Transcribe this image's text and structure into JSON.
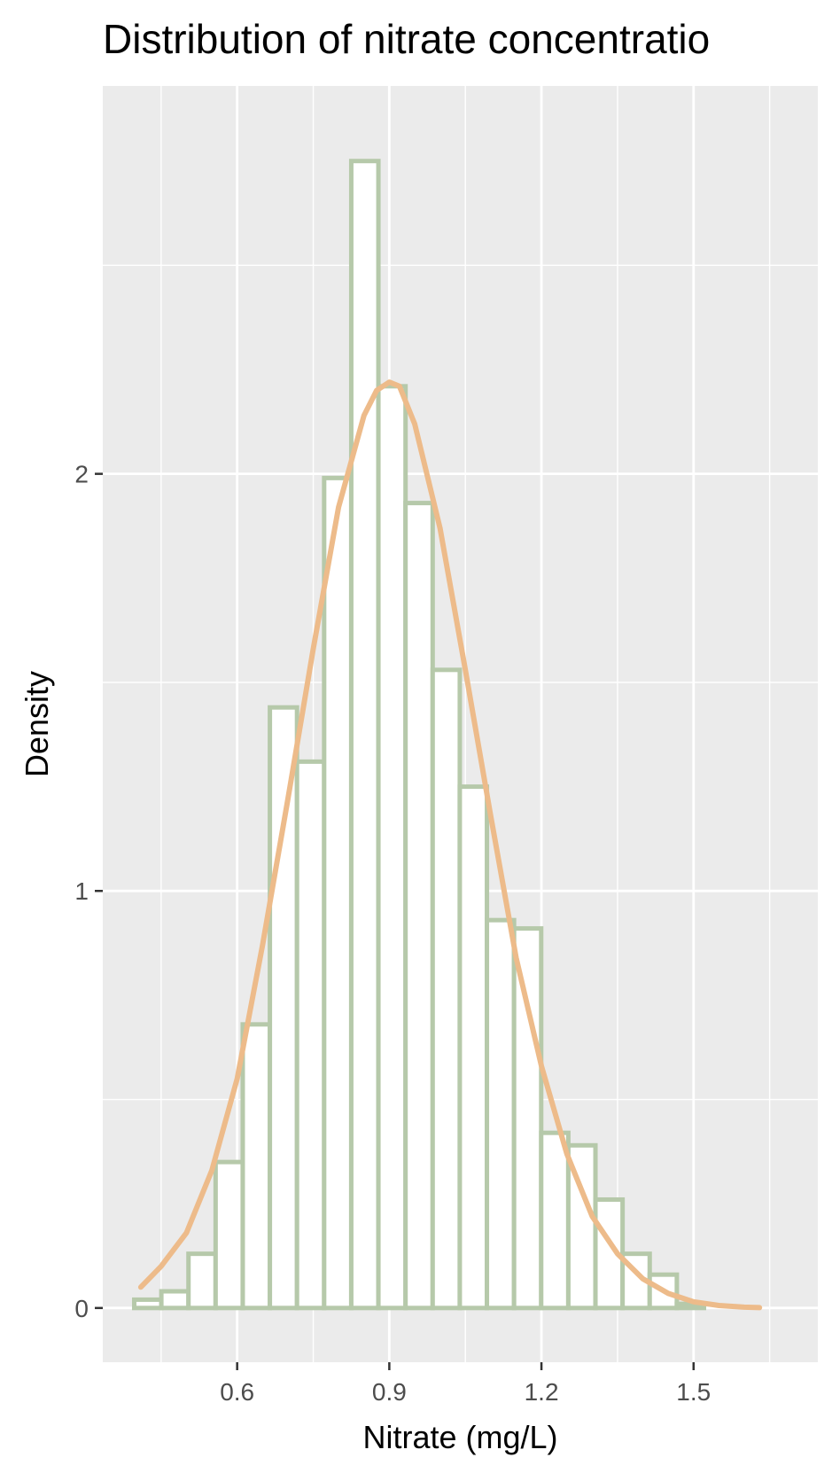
{
  "chart_data": {
    "type": "bar",
    "title": "Distribution of nitrate concentratio",
    "xlabel": "Nitrate (mg/L)",
    "ylabel": "Density",
    "x_ticks": [
      0.6,
      0.9,
      1.2,
      1.5
    ],
    "x_tick_labels": [
      "0.6",
      "0.9",
      "1.2",
      "1.5"
    ],
    "y_ticks": [
      0,
      1,
      2
    ],
    "y_tick_labels": [
      "0",
      "1",
      "2"
    ],
    "xlim": [
      0.335,
      1.745
    ],
    "ylim": [
      -0.13,
      2.93
    ],
    "grid": true,
    "histogram": {
      "bin_width": 0.0535,
      "bin_starts": [
        0.397,
        0.4505,
        0.504,
        0.5575,
        0.611,
        0.6645,
        0.718,
        0.7715,
        0.825,
        0.8785,
        0.932,
        0.9855,
        1.039,
        1.0925,
        1.146,
        1.1995,
        1.253,
        1.3065,
        1.36,
        1.4135,
        1.467,
        1.5205,
        1.574,
        1.6275
      ],
      "values": [
        0.02,
        0.04,
        0.13,
        0.35,
        0.68,
        1.44,
        1.31,
        1.99,
        2.75,
        2.21,
        1.93,
        1.53,
        1.25,
        0.93,
        0.91,
        0.42,
        0.39,
        0.26,
        0.13,
        0.08,
        0.01,
        0.0,
        0.0,
        0.0
      ]
    },
    "density_curve": {
      "x": [
        0.41,
        0.45,
        0.5,
        0.55,
        0.6,
        0.65,
        0.7,
        0.75,
        0.8,
        0.85,
        0.875,
        0.9,
        0.92,
        0.95,
        1.0,
        1.05,
        1.1,
        1.15,
        1.2,
        1.25,
        1.3,
        1.35,
        1.4,
        1.45,
        1.5,
        1.55,
        1.6,
        1.63
      ],
      "y": [
        0.05,
        0.1,
        0.18,
        0.33,
        0.55,
        0.87,
        1.22,
        1.58,
        1.92,
        2.14,
        2.2,
        2.22,
        2.21,
        2.12,
        1.87,
        1.53,
        1.18,
        0.84,
        0.58,
        0.37,
        0.22,
        0.13,
        0.07,
        0.035,
        0.015,
        0.006,
        0.002,
        0.001
      ]
    },
    "colors": {
      "panel_background": "#ebebeb",
      "grid": "#ffffff",
      "bar_fill": "#ffffff",
      "bar_outline": "#b6c9aa",
      "curve": "#edbb8a",
      "tick_text": "#4d4d4d",
      "tick_mark": "#333333"
    }
  }
}
